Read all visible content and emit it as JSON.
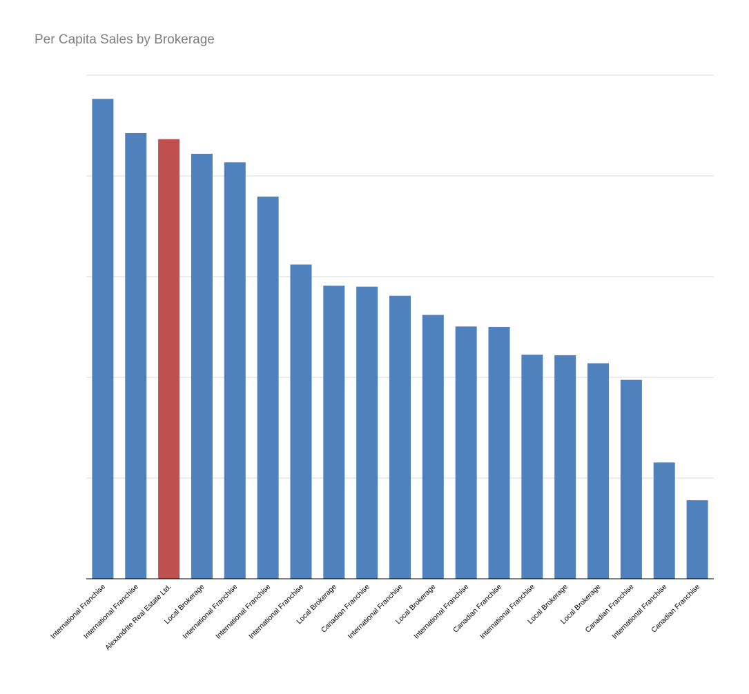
{
  "chart_data": {
    "type": "bar",
    "title": "Per Capita Sales by Brokerage",
    "xlabel": "",
    "ylabel": "",
    "ylim": [
      0,
      100
    ],
    "grid": true,
    "legend": "none",
    "colors": {
      "default": "#4f81bd",
      "highlight": "#c0504d",
      "grid": "#d9d9d9",
      "axis": "#000000"
    },
    "categories": [
      "International Franchise",
      "International Franchise",
      "Alexandrite Real Estate Ltd.",
      "Local Brokerage",
      "International Franchise",
      "International Franchise",
      "International Franchise",
      "Local Brokerage",
      "Canadian Franchise",
      "International Franchise",
      "Local Brokerage",
      "International Franchise",
      "Canadian Franchise",
      "International Franchise",
      "Local Brokerage",
      "Local Brokerage",
      "Canadian Franchise",
      "International Franchise",
      "Canadian Franchise"
    ],
    "values": [
      95.3,
      88.5,
      87.3,
      84.4,
      82.7,
      75.9,
      62.4,
      58.2,
      58.0,
      56.2,
      52.4,
      50.1,
      50.0,
      44.5,
      44.4,
      42.8,
      39.5,
      23.1,
      15.6
    ],
    "highlight_index": 2
  }
}
